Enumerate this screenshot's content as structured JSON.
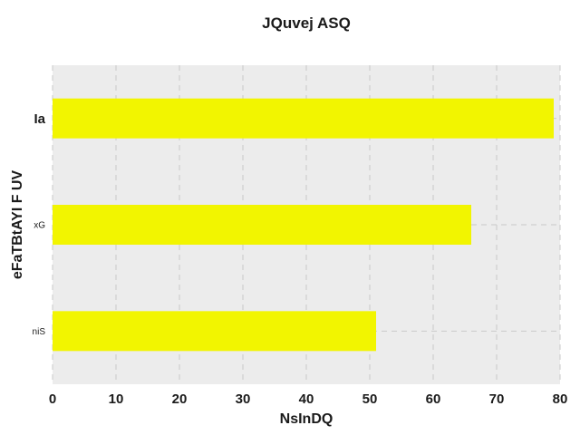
{
  "chart_data": {
    "type": "bar",
    "orientation": "horizontal",
    "title": "JQuvej ASQ",
    "xlabel": "NsInDQ",
    "ylabel": "eFaTBtAYI F UV",
    "categories": [
      "niS",
      "xG",
      "Ia"
    ],
    "values": [
      51,
      66,
      79
    ],
    "xlim": [
      0,
      80
    ],
    "xticks": [
      "0",
      "10",
      "20",
      "30",
      "40",
      "50",
      "60",
      "70",
      "80"
    ],
    "grid": true,
    "legend": "none",
    "colors": {
      "bar": "#f2f500",
      "plot_background": "#ececec",
      "grid": "#c9c9c9"
    }
  }
}
